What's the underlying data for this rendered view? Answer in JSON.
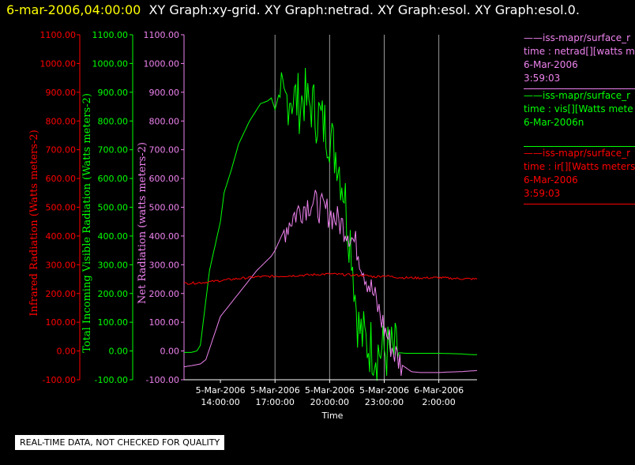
{
  "header": {
    "time": "6-mar-2006,04:00:00",
    "titles": "XY Graph:xy-grid.  XY Graph:netrad.  XY Graph:esol.  XY Graph:esol.0."
  },
  "quality_notice": "REAL-TIME DATA, NOT CHECKED FOR QUALITY",
  "legend": [
    {
      "line1": "——iss-mapr/surface_r",
      "line2": "time : netrad[][watts m",
      "line3": "6-Mar-2006",
      "line4": "3:59:03",
      "color": "#ee82ee"
    },
    {
      "line1": "——iss-mapr/surface_r",
      "line2": "time : vis[][Watts mete",
      "line3": "6-Mar-2006n",
      "line4": "",
      "color": "#00ff00"
    },
    {
      "line1": "——iss-mapr/surface_r",
      "line2": "time : ir[][Watts meters",
      "line3": "6-Mar-2006",
      "line4": "3:59:03",
      "color": "#ff0000"
    }
  ],
  "chart_data": {
    "type": "line",
    "xlabel": "Time",
    "x_range_hours": [
      12.0,
      28.1
    ],
    "x_ticks": [
      {
        "hour": 14,
        "label1": "5-Mar-2006",
        "label2": "14:00:00"
      },
      {
        "hour": 17,
        "label1": "5-Mar-2006",
        "label2": "17:00:00"
      },
      {
        "hour": 20,
        "label1": "5-Mar-2006",
        "label2": "20:00:00"
      },
      {
        "hour": 23,
        "label1": "5-Mar-2006",
        "label2": "23:00:00"
      },
      {
        "hour": 26,
        "label1": "6-Mar-2006",
        "label2": "2:00:00"
      }
    ],
    "vertical_gridlines_hours": [
      17,
      20,
      23,
      26
    ],
    "ylim": [
      -100,
      1100
    ],
    "y_ticks": [
      -100,
      0,
      100,
      200,
      300,
      400,
      500,
      600,
      700,
      800,
      900,
      1000,
      1100
    ],
    "axes": [
      {
        "label": "Infrared Radiation (Watts meters-2)",
        "color": "#ff0000",
        "tick_labels": [
          "-100.00",
          "0.00",
          "100.00",
          "200.00",
          "300.00",
          "400.00",
          "500.00",
          "600.00",
          "700.00",
          "800.00",
          "900.00",
          "1000.00",
          "1100.00"
        ]
      },
      {
        "label": "Total Incoming Visible Radiation (Watts meters-2)",
        "color": "#00ff00",
        "tick_labels": [
          "-100.00",
          "0.00",
          "100.00",
          "200.00",
          "300.00",
          "400.00",
          "500.00",
          "600.00",
          "700.00",
          "800.00",
          "900.00",
          "1000.00",
          "1100.00"
        ]
      },
      {
        "label": "Net Radiation (watts meters-2)",
        "color": "#ee82ee",
        "tick_labels": [
          "-100.00",
          "0.00",
          "100.00",
          "200.00",
          "300.00",
          "400.00",
          "500.00",
          "600.00",
          "700.00",
          "800.00",
          "900.00",
          "1000.00",
          "1100.00"
        ]
      }
    ],
    "series": [
      {
        "color": "#00ff00",
        "x": [
          12.0,
          12.4,
          12.7,
          12.9,
          13.4,
          14.0,
          14.2,
          14.6,
          15.0,
          15.6,
          16.2,
          16.6,
          16.8,
          17.0,
          17.2,
          17.5,
          17.8,
          18.0,
          18.2,
          18.4,
          18.6,
          18.8,
          19.0,
          19.2,
          19.4,
          19.6,
          19.8,
          20.0,
          20.2,
          20.4,
          20.6,
          20.8,
          21.0,
          21.2,
          21.4,
          21.6,
          21.8,
          22.0,
          22.2,
          22.4,
          22.6,
          22.8,
          23.0,
          23.2,
          23.4,
          23.6,
          23.8,
          24.0,
          24.2,
          24.4,
          24.6,
          24.8,
          25.0,
          25.4,
          26.0,
          26.6,
          27.2,
          27.6,
          28.1
        ],
        "y": [
          -5,
          -5,
          0,
          20,
          280,
          450,
          550,
          630,
          720,
          800,
          860,
          870,
          880,
          840,
          890,
          860,
          900,
          880,
          870,
          860,
          890,
          850,
          860,
          830,
          820,
          790,
          780,
          760,
          700,
          690,
          620,
          560,
          440,
          370,
          200,
          80,
          50,
          30,
          20,
          10,
          0,
          0,
          -2,
          -3,
          -5,
          -5,
          -6,
          -7,
          -8,
          -8,
          -8,
          -8,
          -8,
          -8,
          -8,
          -9,
          -10,
          -12,
          -13
        ]
      },
      {
        "color": "#ee82ee",
        "x": [
          12.0,
          12.5,
          12.9,
          13.2,
          14.0,
          15.0,
          16.0,
          16.8,
          17.0,
          17.5,
          18.0,
          18.5,
          19.0,
          19.5,
          20.0,
          20.5,
          21.0,
          21.5,
          22.0,
          22.5,
          23.0,
          23.5,
          24.0,
          24.5,
          25.0,
          25.5,
          26.0,
          26.6,
          27.2,
          27.6,
          28.1
        ],
        "y": [
          -55,
          -50,
          -45,
          -30,
          120,
          200,
          280,
          330,
          350,
          420,
          470,
          500,
          520,
          495,
          480,
          450,
          420,
          360,
          260,
          180,
          80,
          0,
          -50,
          -72,
          -75,
          -75,
          -75,
          -73,
          -72,
          -70,
          -68
        ]
      },
      {
        "color": "#ff0000",
        "x": [
          12.0,
          13.0,
          14.0,
          15.0,
          16.0,
          17.0,
          18.0,
          19.0,
          20.0,
          21.0,
          22.0,
          22.5,
          23.0,
          23.5,
          24.0,
          25.0,
          26.0,
          27.0,
          28.1
        ],
        "y": [
          235,
          238,
          245,
          252,
          258,
          260,
          262,
          265,
          268,
          265,
          262,
          258,
          262,
          258,
          255,
          254,
          255,
          252,
          250
        ]
      }
    ]
  }
}
